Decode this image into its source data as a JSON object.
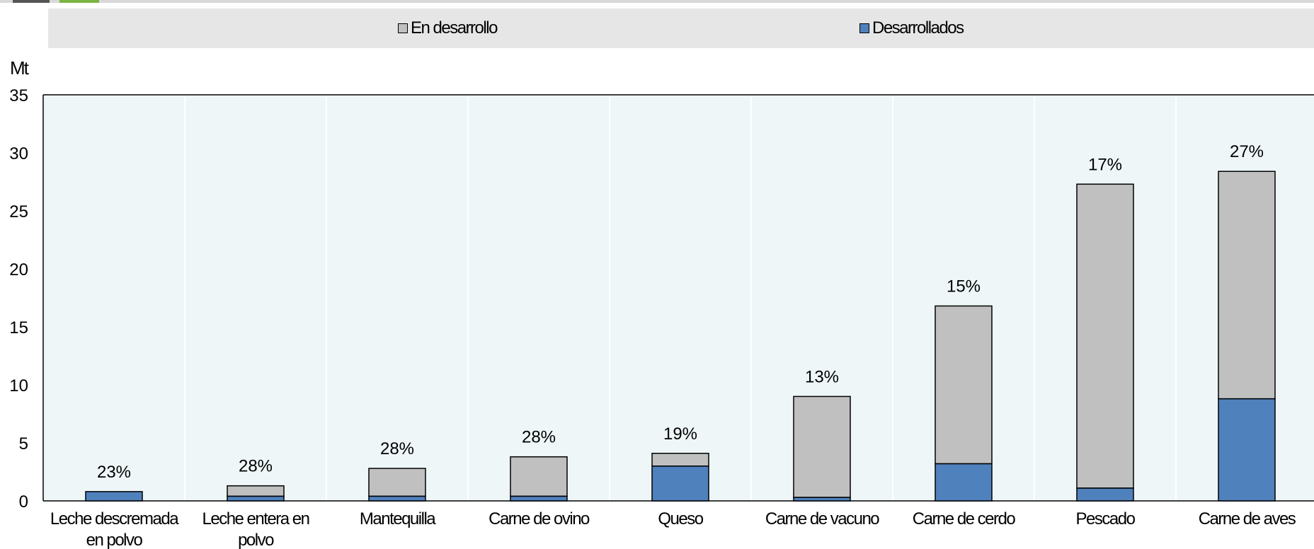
{
  "chart_data": {
    "type": "bar",
    "stacked": true,
    "ylabel": "Mt",
    "ylim": [
      0,
      35
    ],
    "yticks": [
      0,
      5,
      10,
      15,
      20,
      25,
      30,
      35
    ],
    "categories": [
      [
        "Leche descremada",
        "en polvo"
      ],
      [
        "Leche entera en",
        "polvo"
      ],
      [
        "Mantequilla"
      ],
      [
        "Carne de ovino"
      ],
      [
        "Queso"
      ],
      [
        "Carne de vacuno"
      ],
      [
        "Carne de cerdo"
      ],
      [
        "Pescado"
      ],
      [
        "Carne de aves"
      ]
    ],
    "series": [
      {
        "name": "Desarrollados",
        "color": "#4f81bd",
        "values": [
          0.8,
          0.4,
          0.4,
          0.4,
          3.0,
          0.3,
          3.2,
          1.1,
          8.8
        ]
      },
      {
        "name": "En desarrollo",
        "color": "#c0c0c0",
        "values": [
          0.0,
          0.9,
          2.4,
          3.4,
          1.1,
          8.7,
          13.6,
          26.2,
          19.6
        ]
      }
    ],
    "data_labels": [
      "23%",
      "28%",
      "28%",
      "28%",
      "19%",
      "13%",
      "15%",
      "17%",
      "27%"
    ],
    "grid": false,
    "legend_position": "top"
  },
  "legend": {
    "items": [
      {
        "label": "En desarrollo",
        "color": "#c0c0c0"
      },
      {
        "label": "Desarrollados",
        "color": "#4f81bd"
      }
    ]
  }
}
